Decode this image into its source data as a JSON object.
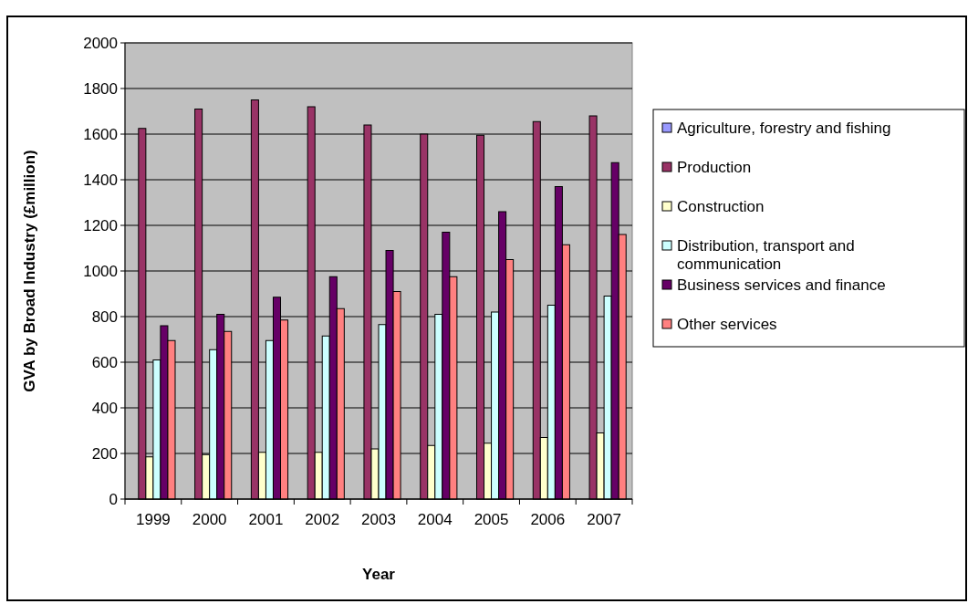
{
  "chart_data": {
    "type": "bar",
    "xlabel": "Year",
    "ylabel": "GVA by Broad Industry (£million)",
    "categories": [
      "1999",
      "2000",
      "2001",
      "2002",
      "2003",
      "2004",
      "2005",
      "2006",
      "2007"
    ],
    "series": [
      {
        "name": "Agriculture, forestry and fishing",
        "color": "#9999ff",
        "values": [
          null,
          null,
          null,
          null,
          null,
          null,
          null,
          null,
          null
        ]
      },
      {
        "name": "Production",
        "color": "#993366",
        "values": [
          1625,
          1710,
          1750,
          1720,
          1640,
          1600,
          1595,
          1655,
          1680
        ]
      },
      {
        "name": "Construction",
        "color": "#ffffcc",
        "values": [
          185,
          195,
          205,
          205,
          220,
          235,
          245,
          270,
          290
        ]
      },
      {
        "name": "Distribution, transport and communication",
        "color": "#ccffff",
        "values": [
          610,
          655,
          695,
          715,
          765,
          810,
          820,
          850,
          890
        ]
      },
      {
        "name": "Business services and finance",
        "color": "#660066",
        "values": [
          760,
          810,
          885,
          975,
          1090,
          1170,
          1260,
          1370,
          1475
        ]
      },
      {
        "name": "Other services",
        "color": "#ff8080",
        "values": [
          695,
          735,
          785,
          835,
          910,
          975,
          1050,
          1115,
          1160
        ]
      }
    ],
    "ylim": [
      0,
      2000
    ],
    "yticks": [
      0,
      200,
      400,
      600,
      800,
      1000,
      1200,
      1400,
      1600,
      1800,
      2000
    ],
    "grid": "y",
    "legend": "right"
  }
}
